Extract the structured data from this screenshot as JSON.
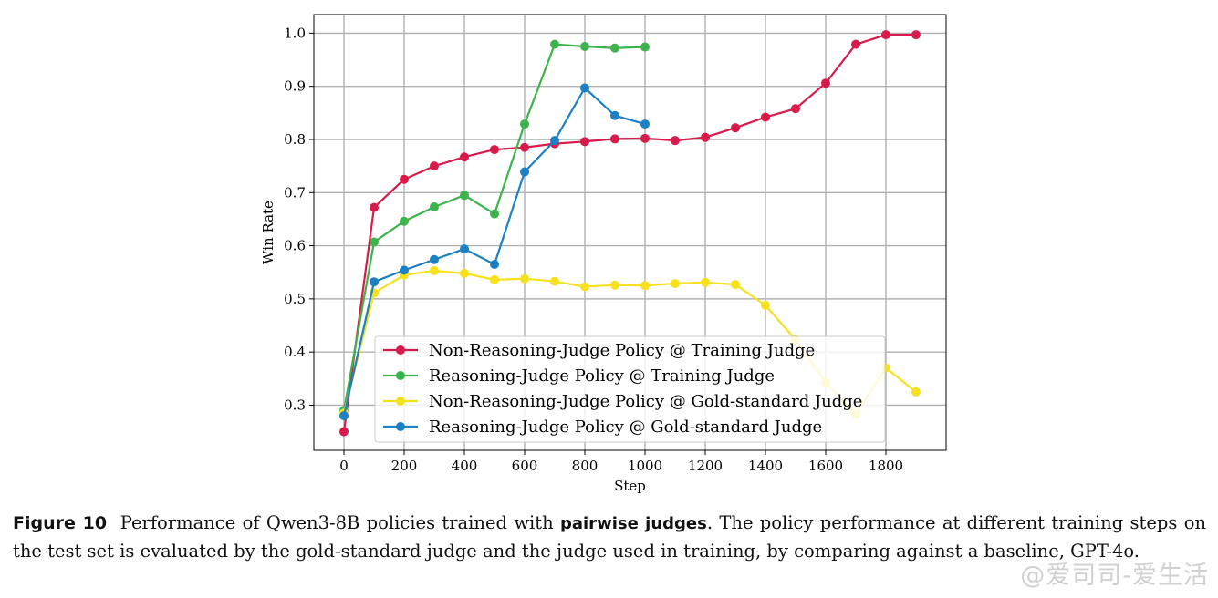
{
  "chart_data": {
    "type": "line",
    "title": "",
    "xlabel": "Step",
    "ylabel": "Win Rate",
    "xlim": [
      -100,
      2000
    ],
    "ylim": [
      0.215,
      1.035
    ],
    "xticks": [
      0,
      200,
      400,
      600,
      800,
      1000,
      1200,
      1400,
      1600,
      1800
    ],
    "yticks": [
      0.3,
      0.4,
      0.5,
      0.6,
      0.7,
      0.8,
      0.9,
      1.0
    ],
    "grid": true,
    "legend_position": "lower-center",
    "series": [
      {
        "name": "Non-Reasoning-Judge Policy @ Training Judge",
        "color": "#d81b4a",
        "x": [
          0,
          100,
          200,
          300,
          400,
          500,
          600,
          700,
          800,
          900,
          1000,
          1100,
          1200,
          1300,
          1400,
          1500,
          1600,
          1700,
          1800,
          1900
        ],
        "y": [
          0.25,
          0.672,
          0.725,
          0.75,
          0.767,
          0.781,
          0.785,
          0.792,
          0.796,
          0.801,
          0.802,
          0.798,
          0.804,
          0.822,
          0.842,
          0.858,
          0.906,
          0.979,
          0.997,
          0.997
        ]
      },
      {
        "name": "Reasoning-Judge Policy @ Training Judge",
        "color": "#3cb44b",
        "x": [
          0,
          100,
          200,
          300,
          400,
          500,
          600,
          700,
          800,
          900,
          1000
        ],
        "y": [
          0.29,
          0.607,
          0.646,
          0.673,
          0.695,
          0.66,
          0.829,
          0.979,
          0.975,
          0.972,
          0.974
        ]
      },
      {
        "name": "Non-Reasoning-Judge Policy @ Gold-standard Judge",
        "color": "#f7e11f",
        "x": [
          0,
          100,
          200,
          300,
          400,
          500,
          600,
          700,
          800,
          900,
          1000,
          1100,
          1200,
          1300,
          1400,
          1500,
          1600,
          1700,
          1800,
          1900
        ],
        "y": [
          0.285,
          0.511,
          0.545,
          0.553,
          0.548,
          0.536,
          0.538,
          0.533,
          0.523,
          0.526,
          0.525,
          0.529,
          0.531,
          0.527,
          0.488,
          0.423,
          0.343,
          0.283,
          0.37,
          0.325
        ]
      },
      {
        "name": "Reasoning-Judge Policy @ Gold-standard Judge",
        "color": "#1b80c4",
        "x": [
          0,
          100,
          200,
          300,
          400,
          500,
          600,
          700,
          800,
          900,
          1000
        ],
        "y": [
          0.28,
          0.532,
          0.554,
          0.574,
          0.594,
          0.565,
          0.739,
          0.798,
          0.897,
          0.845,
          0.829
        ]
      }
    ]
  },
  "caption": {
    "label": "Figure 10",
    "text_before": "Performance of Qwen3-8B policies trained with",
    "bold": "pairwise judges",
    "text_after": ". The policy performance at different training steps on the test set is evaluated by the gold-standard judge and the judge used in training, by comparing against a baseline, GPT-4o."
  },
  "watermark": "@爱司司-爱生活"
}
